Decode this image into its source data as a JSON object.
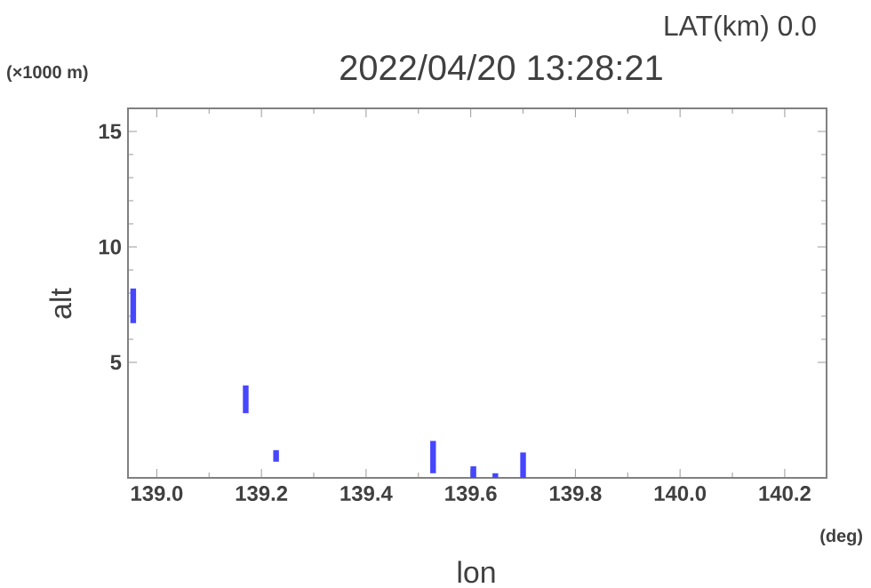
{
  "chart_data": {
    "type": "bar",
    "title": "2022/04/20 13:28:21",
    "subtitle": "LAT(km) 0.0",
    "xlabel": "lon",
    "ylabel": "alt",
    "annotations": [
      "(×1000 m)",
      "(deg)"
    ],
    "x": [
      138.955,
      139.17,
      139.228,
      139.528,
      139.605,
      139.647,
      139.7
    ],
    "base": [
      6.7,
      2.8,
      0.7,
      0.2,
      0,
      0,
      0
    ],
    "values": [
      1.5,
      1.2,
      0.5,
      1.4,
      0.5,
      0.2,
      1.1
    ],
    "color": "#4646ff",
    "xlim": [
      138.945,
      140.28
    ],
    "ylim": [
      0,
      16
    ],
    "xticks": [
      {
        "value": 139.0,
        "label": "139.0"
      },
      {
        "value": 139.2,
        "label": "139.2"
      },
      {
        "value": 139.4,
        "label": "139.4"
      },
      {
        "value": 139.6,
        "label": "139.6"
      },
      {
        "value": 139.8,
        "label": "139.8"
      },
      {
        "value": 140.0,
        "label": "140.0"
      },
      {
        "value": 140.2,
        "label": "140.2"
      }
    ],
    "yticks": [
      5,
      10,
      15
    ],
    "grid": false
  }
}
